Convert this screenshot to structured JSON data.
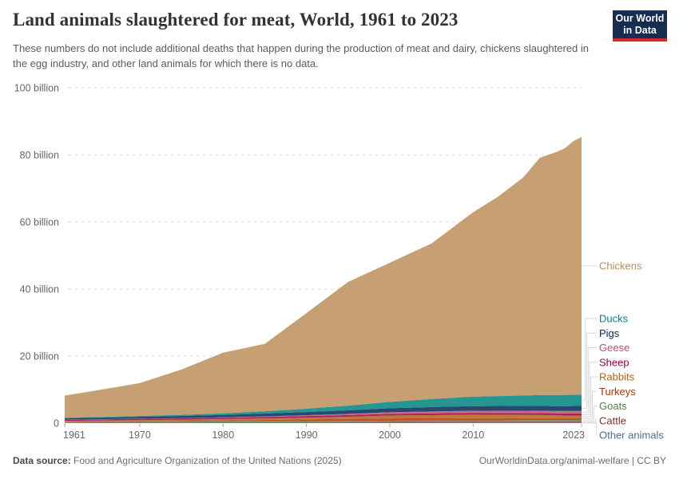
{
  "header": {
    "title": "Land animals slaughtered for meat, World, 1961 to 2023",
    "subtitle": "These numbers do not include additional deaths that happen during the production of meat and dairy, chickens slaughtered in the egg industry, and other land animals for which there is no data.",
    "logo": {
      "line1": "Our World",
      "line2": "in Data",
      "bg_color": "#142D50",
      "accent_color": "#D7282F"
    }
  },
  "footer": {
    "source_label": "Data source:",
    "source_text": " Food and Agriculture Organization of the United Nations (2025)",
    "right_text": "OurWorldinData.org/animal-welfare | CC BY"
  },
  "chart_data": {
    "type": "area",
    "stacked": true,
    "title": "Land animals slaughtered for meat",
    "entity": "World",
    "unit": "animals per year",
    "xlim": [
      1961,
      2023
    ],
    "ylim": [
      0,
      100000000000
    ],
    "ylim_billion": [
      0,
      100
    ],
    "grid": "horizontal-dashed",
    "legend_position": "right",
    "x": [
      1961,
      1965,
      1970,
      1975,
      1980,
      1985,
      1990,
      1995,
      2000,
      2005,
      2010,
      2013,
      2016,
      2018,
      2020,
      2021,
      2022,
      2023
    ],
    "values_unit": "billions of animals",
    "series": [
      {
        "name": "Chickens",
        "color": "#BC8E5A",
        "values": [
          6.6,
          8.0,
          9.8,
          13.5,
          18.1,
          20.1,
          28.5,
          36.9,
          41.5,
          46.4,
          55.0,
          59.5,
          65.0,
          70.8,
          72.5,
          73.6,
          75.6,
          76.8
        ]
      },
      {
        "name": "Ducks",
        "color": "#00847E",
        "values": [
          0.17,
          0.2,
          0.25,
          0.33,
          0.45,
          0.65,
          1.0,
          1.4,
          1.9,
          2.4,
          2.8,
          2.95,
          3.1,
          3.2,
          3.3,
          3.3,
          3.35,
          3.4
        ]
      },
      {
        "name": "Pigs",
        "color": "#00295B",
        "values": [
          0.38,
          0.45,
          0.55,
          0.64,
          0.73,
          0.84,
          0.95,
          1.05,
          1.18,
          1.3,
          1.38,
          1.42,
          1.45,
          1.45,
          1.4,
          1.45,
          1.48,
          1.5
        ]
      },
      {
        "name": "Geese",
        "color": "#C15065",
        "values": [
          0.04,
          0.05,
          0.06,
          0.08,
          0.12,
          0.17,
          0.25,
          0.35,
          0.48,
          0.56,
          0.62,
          0.65,
          0.68,
          0.7,
          0.72,
          0.72,
          0.73,
          0.73
        ]
      },
      {
        "name": "Sheep",
        "color": "#970046",
        "values": [
          0.33,
          0.35,
          0.38,
          0.4,
          0.42,
          0.45,
          0.48,
          0.5,
          0.52,
          0.54,
          0.55,
          0.57,
          0.58,
          0.6,
          0.62,
          0.63,
          0.64,
          0.65
        ]
      },
      {
        "name": "Rabbits",
        "color": "#B16214",
        "values": [
          0.25,
          0.27,
          0.3,
          0.34,
          0.38,
          0.44,
          0.5,
          0.65,
          0.85,
          0.95,
          1.05,
          1.0,
          0.95,
          0.9,
          0.8,
          0.76,
          0.74,
          0.72
        ]
      },
      {
        "name": "Turkeys",
        "color": "#B13507",
        "values": [
          0.13,
          0.16,
          0.2,
          0.25,
          0.31,
          0.42,
          0.54,
          0.62,
          0.68,
          0.66,
          0.65,
          0.63,
          0.62,
          0.61,
          0.6,
          0.58,
          0.56,
          0.55
        ]
      },
      {
        "name": "Goats",
        "color": "#578145",
        "values": [
          0.12,
          0.13,
          0.15,
          0.17,
          0.2,
          0.23,
          0.27,
          0.31,
          0.36,
          0.4,
          0.43,
          0.45,
          0.47,
          0.48,
          0.5,
          0.51,
          0.52,
          0.53
        ]
      },
      {
        "name": "Cattle",
        "color": "#883039",
        "values": [
          0.17,
          0.19,
          0.21,
          0.23,
          0.25,
          0.26,
          0.27,
          0.28,
          0.3,
          0.31,
          0.32,
          0.32,
          0.33,
          0.33,
          0.33,
          0.34,
          0.35,
          0.36
        ]
      },
      {
        "name": "Other animals",
        "color": "#4C6A9C",
        "values": [
          0.03,
          0.03,
          0.04,
          0.04,
          0.04,
          0.05,
          0.05,
          0.05,
          0.06,
          0.06,
          0.07,
          0.07,
          0.07,
          0.08,
          0.08,
          0.08,
          0.09,
          0.09
        ]
      }
    ],
    "stack_order_note": "series listed top-of-stack first; rendered bottom-to-top in reverse order",
    "yticks": [
      {
        "value": 0,
        "label": "0"
      },
      {
        "value": 20,
        "label": "20 billion"
      },
      {
        "value": 40,
        "label": "40 billion"
      },
      {
        "value": 60,
        "label": "60 billion"
      },
      {
        "value": 80,
        "label": "80 billion"
      },
      {
        "value": 100,
        "label": "100 billion"
      }
    ],
    "xticks": [
      {
        "value": 1961,
        "label": "1961"
      },
      {
        "value": 1970,
        "label": "1970"
      },
      {
        "value": 1980,
        "label": "1980"
      },
      {
        "value": 1990,
        "label": "1990"
      },
      {
        "value": 2000,
        "label": "2000"
      },
      {
        "value": 2010,
        "label": "2010"
      },
      {
        "value": 2023,
        "label": "2023"
      }
    ]
  }
}
